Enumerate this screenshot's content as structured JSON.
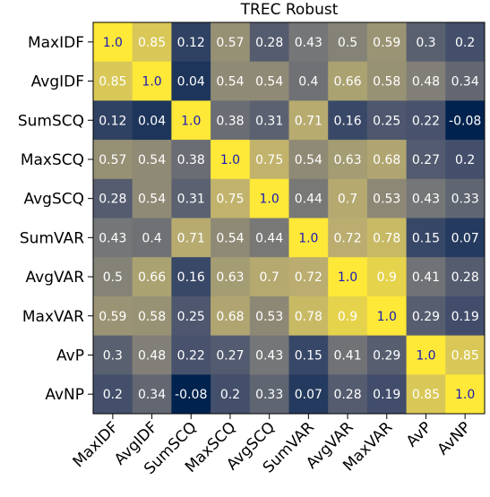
{
  "chart_data": {
    "type": "heatmap",
    "title": "TREC Robust",
    "row_labels": [
      "MaxIDF",
      "AvgIDF",
      "SumSCQ",
      "MaxSCQ",
      "AvgSCQ",
      "SumVAR",
      "AvgVAR",
      "MaxVAR",
      "AvP",
      "AvNP"
    ],
    "col_labels": [
      "MaxIDF",
      "AvgIDF",
      "SumSCQ",
      "MaxSCQ",
      "AvgSCQ",
      "SumVAR",
      "AvgVAR",
      "MaxVAR",
      "AvP",
      "AvNP"
    ],
    "values": [
      [
        1.0,
        0.85,
        0.12,
        0.57,
        0.28,
        0.43,
        0.5,
        0.59,
        0.3,
        0.2
      ],
      [
        0.85,
        1.0,
        0.04,
        0.54,
        0.54,
        0.4,
        0.66,
        0.58,
        0.48,
        0.34
      ],
      [
        0.12,
        0.04,
        1.0,
        0.38,
        0.31,
        0.71,
        0.16,
        0.25,
        0.22,
        -0.08
      ],
      [
        0.57,
        0.54,
        0.38,
        1.0,
        0.75,
        0.54,
        0.63,
        0.68,
        0.27,
        0.2
      ],
      [
        0.28,
        0.54,
        0.31,
        0.75,
        1.0,
        0.44,
        0.7,
        0.53,
        0.43,
        0.33
      ],
      [
        0.43,
        0.4,
        0.71,
        0.54,
        0.44,
        1.0,
        0.72,
        0.78,
        0.15,
        0.07
      ],
      [
        0.5,
        0.66,
        0.16,
        0.63,
        0.7,
        0.72,
        1.0,
        0.9,
        0.41,
        0.28
      ],
      [
        0.59,
        0.58,
        0.25,
        0.68,
        0.53,
        0.78,
        0.9,
        1.0,
        0.29,
        0.19
      ],
      [
        0.3,
        0.48,
        0.22,
        0.27,
        0.43,
        0.15,
        0.41,
        0.29,
        1.0,
        0.85
      ],
      [
        0.2,
        0.34,
        -0.08,
        0.2,
        0.33,
        0.07,
        0.28,
        0.19,
        0.85,
        1.0
      ]
    ],
    "value_labels": [
      [
        "1.0",
        "0.85",
        "0.12",
        "0.57",
        "0.28",
        "0.43",
        "0.5",
        "0.59",
        "0.3",
        "0.2"
      ],
      [
        "0.85",
        "1.0",
        "0.04",
        "0.54",
        "0.54",
        "0.4",
        "0.66",
        "0.58",
        "0.48",
        "0.34"
      ],
      [
        "0.12",
        "0.04",
        "1.0",
        "0.38",
        "0.31",
        "0.71",
        "0.16",
        "0.25",
        "0.22",
        "-0.08"
      ],
      [
        "0.57",
        "0.54",
        "0.38",
        "1.0",
        "0.75",
        "0.54",
        "0.63",
        "0.68",
        "0.27",
        "0.2"
      ],
      [
        "0.28",
        "0.54",
        "0.31",
        "0.75",
        "1.0",
        "0.44",
        "0.7",
        "0.53",
        "0.43",
        "0.33"
      ],
      [
        "0.43",
        "0.4",
        "0.71",
        "0.54",
        "0.44",
        "1.0",
        "0.72",
        "0.78",
        "0.15",
        "0.07"
      ],
      [
        "0.5",
        "0.66",
        "0.16",
        "0.63",
        "0.7",
        "0.72",
        "1.0",
        "0.9",
        "0.41",
        "0.28"
      ],
      [
        "0.59",
        "0.58",
        "0.25",
        "0.68",
        "0.53",
        "0.78",
        "0.9",
        "1.0",
        "0.29",
        "0.19"
      ],
      [
        "0.3",
        "0.48",
        "0.22",
        "0.27",
        "0.43",
        "0.15",
        "0.41",
        "0.29",
        "1.0",
        "0.85"
      ],
      [
        "0.2",
        "0.34",
        "-0.08",
        "0.2",
        "0.33",
        "0.07",
        "0.28",
        "0.19",
        "0.85",
        "1.0"
      ]
    ],
    "colormap": "cividis",
    "color_range": [
      -0.08,
      1.0
    ],
    "colorbar": false,
    "grid": false,
    "colors": {
      "low": "#00224e",
      "high": "#fee838",
      "label_on_dark": "#ffffff",
      "label_on_bright": "#1a1ab4"
    }
  }
}
